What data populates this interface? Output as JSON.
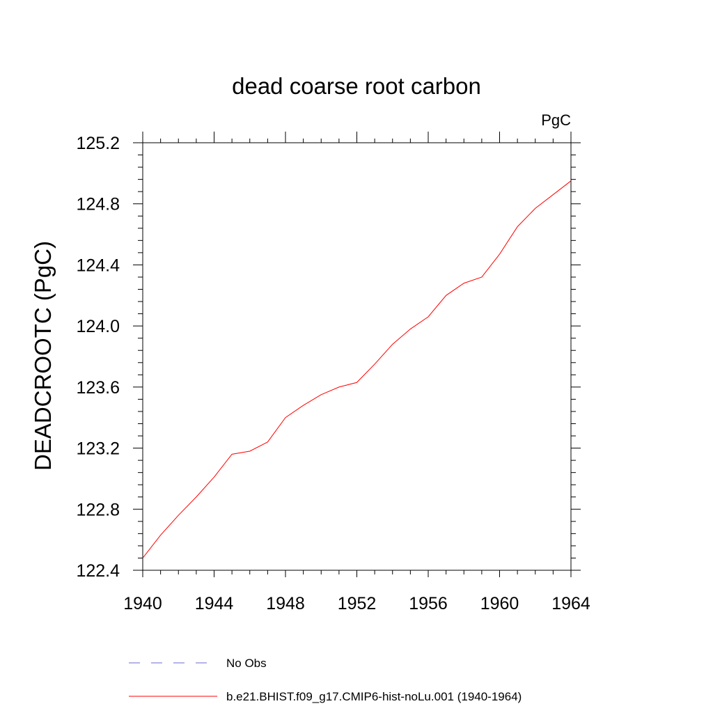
{
  "chart_data": {
    "type": "line",
    "title": "dead coarse root carbon",
    "units": "PgC",
    "ylabel": "DEADCROOTC  (PgC)",
    "xlabel": "",
    "xlim": [
      1940,
      1964
    ],
    "ylim": [
      122.4,
      125.2
    ],
    "x_ticks": [
      "1940",
      "1944",
      "1948",
      "1952",
      "1956",
      "1960",
      "1964"
    ],
    "y_ticks": [
      "122.4",
      "122.8",
      "123.2",
      "123.6",
      "124.0",
      "124.4",
      "124.8",
      "125.2"
    ],
    "grid": false,
    "legend_position": "bottom",
    "series": [
      {
        "name": "No Obs",
        "color": "#6a6ad0",
        "dash": "dashed",
        "x": [],
        "values": []
      },
      {
        "name": "b.e21.BHIST.f09_g17.CMIP6-hist-noLu.001 (1940-1964)",
        "color": "#ff0000",
        "dash": "solid",
        "x": [
          1940,
          1941,
          1942,
          1943,
          1944,
          1945,
          1946,
          1947,
          1948,
          1949,
          1950,
          1951,
          1952,
          1953,
          1954,
          1955,
          1956,
          1957,
          1958,
          1959,
          1960,
          1961,
          1962,
          1963,
          1964
        ],
        "values": [
          122.48,
          122.63,
          122.76,
          122.88,
          123.01,
          123.16,
          123.18,
          123.24,
          123.4,
          123.48,
          123.55,
          123.6,
          123.63,
          123.75,
          123.88,
          123.98,
          124.06,
          124.2,
          124.28,
          124.32,
          124.47,
          124.65,
          124.77,
          124.86,
          124.95
        ]
      }
    ]
  }
}
